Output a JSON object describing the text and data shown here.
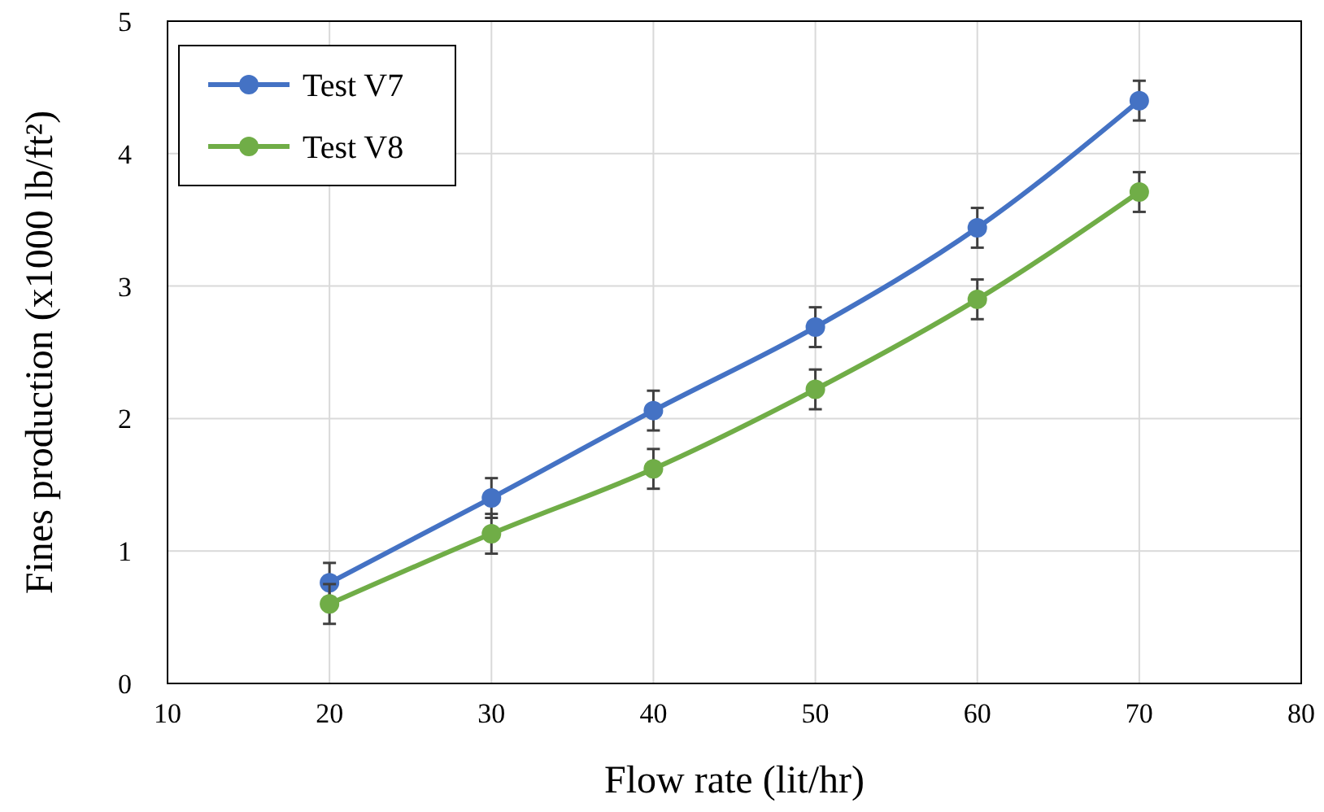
{
  "chart_data": {
    "type": "line",
    "xlabel": "Flow rate (lit/hr)",
    "ylabel": "Fines production (x1000 lb/ft²)",
    "x": [
      20,
      30,
      40,
      50,
      60,
      70
    ],
    "series": [
      {
        "name": "Test V7",
        "color": "#4472c4",
        "values": [
          0.76,
          1.4,
          2.06,
          2.69,
          3.44,
          4.4
        ],
        "errors": [
          0.15,
          0.15,
          0.15,
          0.15,
          0.15,
          0.15
        ]
      },
      {
        "name": "Test V8",
        "color": "#70ad47",
        "values": [
          0.6,
          1.13,
          1.62,
          2.22,
          2.9,
          3.71
        ],
        "errors": [
          0.15,
          0.15,
          0.15,
          0.15,
          0.15,
          0.15
        ]
      }
    ],
    "xlim": [
      10,
      80
    ],
    "xticks": [
      10,
      20,
      30,
      40,
      50,
      60,
      70,
      80
    ],
    "ylim": [
      0,
      5
    ],
    "yticks": [
      0,
      1,
      2,
      3,
      4,
      5
    ],
    "grid": true,
    "legend": "top left",
    "marker": "circle",
    "line_style": "solid"
  }
}
